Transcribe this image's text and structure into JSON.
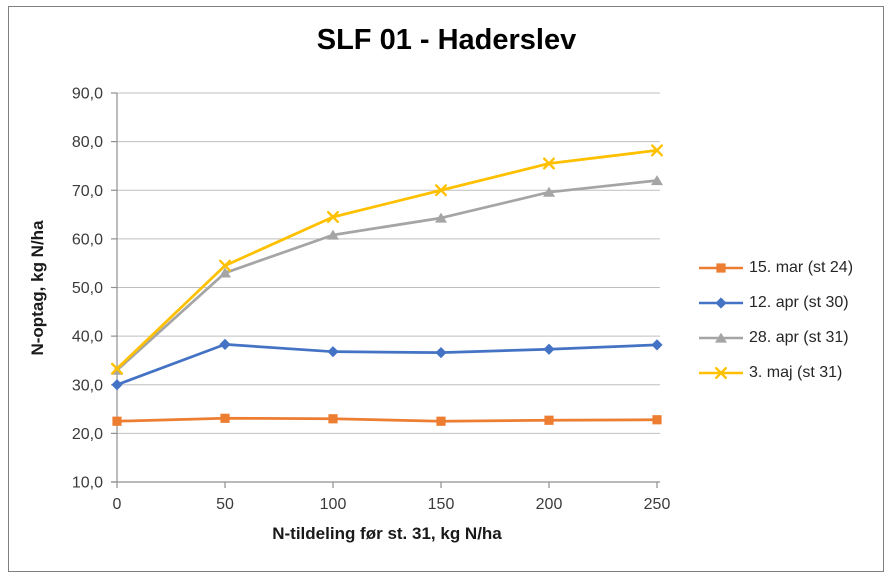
{
  "chart_data": {
    "type": "line",
    "title": "SLF 01 - Haderslev",
    "xlabel": "N-tildeling før st. 31, kg N/ha",
    "ylabel": "N-optag, kg N/ha",
    "xlim": [
      0,
      250
    ],
    "ylim": [
      10,
      90
    ],
    "grid": "horizontal",
    "legend_position": "right-outside",
    "x": [
      0,
      50,
      100,
      150,
      200,
      250
    ],
    "xtick_labels": [
      "0",
      "50",
      "100",
      "150",
      "200",
      "250"
    ],
    "ytick_values": [
      10,
      20,
      30,
      40,
      50,
      60,
      70,
      80,
      90
    ],
    "ytick_labels": [
      "10,0",
      "20,0",
      "30,0",
      "40,0",
      "50,0",
      "60,0",
      "70,0",
      "80,0",
      "90,0"
    ],
    "series": [
      {
        "name": "15. mar (st 24)",
        "color": "#ED7D31",
        "marker": "square",
        "values": [
          22.5,
          23.1,
          23.0,
          22.5,
          22.7,
          22.8
        ]
      },
      {
        "name": "12. apr (st 30)",
        "color": "#4472C4",
        "marker": "diamond",
        "values": [
          30.0,
          38.3,
          36.8,
          36.6,
          37.3,
          38.2
        ]
      },
      {
        "name": "28. apr (st 31)",
        "color": "#A5A5A5",
        "marker": "triangle",
        "values": [
          33.0,
          53.0,
          60.8,
          64.3,
          69.6,
          72.0
        ]
      },
      {
        "name": "3. maj (st 31)",
        "color": "#FFC000",
        "marker": "x",
        "values": [
          33.3,
          54.5,
          64.5,
          70.0,
          75.5,
          78.2
        ]
      }
    ]
  }
}
